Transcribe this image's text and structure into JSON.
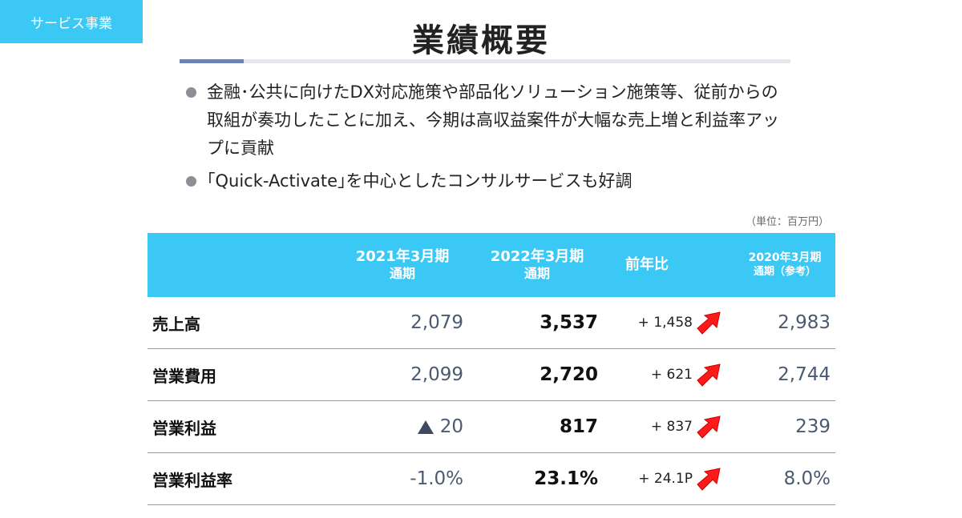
{
  "section_tag": "サービス事業",
  "title": "業績概要",
  "bullets": [
    "金融･公共に向けたDX対応施策や部品化ソリューション施策等、従前からの取組が奏功したことに加え、今期は高収益案件が大幅な売上増と利益率アップに貢献",
    "｢Quick-Activate｣を中心としたコンサルサービスも好調"
  ],
  "unit_note": "（単位：百万円）",
  "table": {
    "headers": {
      "prev": {
        "line1": "2021年3月期",
        "line2": "通期"
      },
      "curr": {
        "line1": "2022年3月期",
        "line2": "通期"
      },
      "yoy": {
        "line1": "前年比"
      },
      "ref": {
        "line1": "2020年3月期",
        "line2": "通期（参考）"
      }
    },
    "rows": [
      {
        "label": "売上高",
        "prev": "2,079",
        "curr": "3,537",
        "yoy": "+ 1,458",
        "ref": "2,983",
        "arrow": "up-right-arrow-icon"
      },
      {
        "label": "営業費用",
        "prev": "2,099",
        "curr": "2,720",
        "yoy": "+ 621",
        "ref": "2,744",
        "arrow": "up-right-arrow-icon"
      },
      {
        "label": "営業利益",
        "prev": "20",
        "prev_marker": "▲",
        "curr": "817",
        "yoy": "+ 837",
        "ref": "239",
        "arrow": "up-right-arrow-icon"
      },
      {
        "label": "営業利益率",
        "prev": "-1.0%",
        "curr": "23.1%",
        "yoy": "+ 24.1P",
        "ref": "8.0%",
        "arrow": "up-right-arrow-icon"
      }
    ]
  },
  "colors": {
    "header_bg": "#3cc8f5",
    "arrow": "#ff1a1a",
    "accent_rule": "#6d82b6"
  }
}
